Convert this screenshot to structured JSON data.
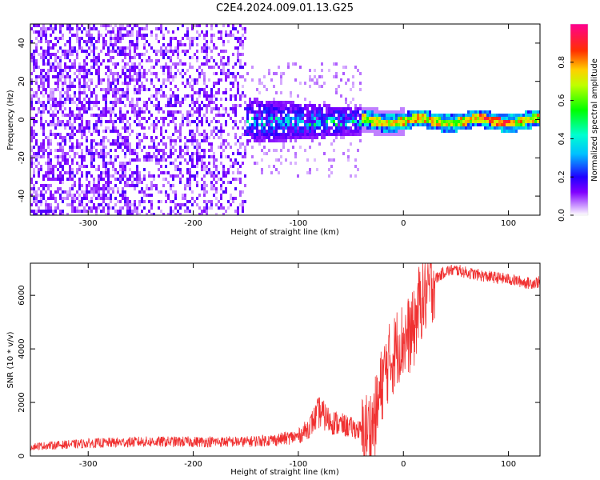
{
  "title": "C2E4.2024.009.01.13.G25",
  "chart_data": [
    {
      "type": "heatmap",
      "xlabel": "Height of straight line (km)",
      "ylabel": "Frequency (Hz)",
      "xlim": [
        -355,
        130
      ],
      "ylim": [
        -50,
        50
      ],
      "xticks": [
        -300,
        -200,
        -100,
        0,
        100
      ],
      "yticks": [
        -40,
        -20,
        0,
        20,
        40
      ],
      "grid": false,
      "colorbar": {
        "label": "Normalized spectral amplitude",
        "range": [
          0,
          1
        ],
        "ticks": [
          "0.0",
          "0.2",
          "0.4",
          "0.6",
          "0.8"
        ],
        "colormap": "hsv-like",
        "colors": [
          "#ffffff",
          "#8000ff",
          "#0000ff",
          "#00ffff",
          "#00ff00",
          "#ffff00",
          "#ff0000",
          "#ff0080"
        ]
      },
      "description_regions": [
        {
          "x_range": [
            -355,
            -150
          ],
          "freq_spread": [
            -50,
            50
          ],
          "amplitude": 0.05
        },
        {
          "x_range": [
            -150,
            -40
          ],
          "freq_spread": [
            -12,
            10
          ],
          "amplitude": 0.15
        },
        {
          "x_range": [
            -40,
            130
          ],
          "freq_spread": [
            -3,
            3
          ],
          "amplitude": 0.9
        }
      ]
    },
    {
      "type": "line",
      "xlabel": "Height of straight line (km)",
      "ylabel": "SNR (10 * v/v)",
      "xlim": [
        -355,
        130
      ],
      "ylim": [
        0,
        7200
      ],
      "xticks": [
        -300,
        -200,
        -100,
        0,
        100
      ],
      "yticks": [
        0,
        2000,
        4000,
        6000
      ],
      "grid": false,
      "color": "#f03030",
      "x": [
        -355,
        -300,
        -250,
        -200,
        -150,
        -120,
        -100,
        -90,
        -80,
        -70,
        -60,
        -50,
        -40,
        -30,
        -25,
        -20,
        -15,
        -10,
        -5,
        0,
        5,
        10,
        15,
        20,
        30,
        40,
        50,
        60,
        80,
        100,
        120,
        130
      ],
      "values": [
        300,
        400,
        450,
        450,
        450,
        520,
        620,
        900,
        1400,
        1100,
        1000,
        900,
        800,
        1100,
        1700,
        2800,
        3400,
        3700,
        4200,
        4300,
        4500,
        4700,
        5700,
        5900,
        6600,
        6900,
        6950,
        6850,
        6700,
        6600,
        6450,
        6500
      ]
    }
  ]
}
